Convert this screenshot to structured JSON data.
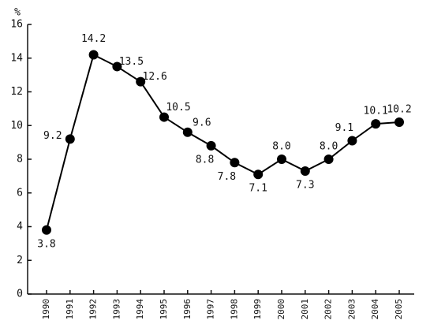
{
  "chart_data": {
    "type": "line",
    "y_label": "%",
    "categories": [
      "1990",
      "1991",
      "1992",
      "1993",
      "1994",
      "1995",
      "1996",
      "1997",
      "1998",
      "1999",
      "2000",
      "2001",
      "2002",
      "2003",
      "2004",
      "2005"
    ],
    "values": [
      3.8,
      9.2,
      14.2,
      13.5,
      12.6,
      10.5,
      9.6,
      8.8,
      7.8,
      7.1,
      8.0,
      7.3,
      8.0,
      9.1,
      10.1,
      10.2
    ],
    "value_labels": [
      "3.8",
      "9.2",
      "14.2",
      "13.5",
      "12.6",
      "10.5",
      "9.6",
      "8.8",
      "7.8",
      "7.1",
      "8.0",
      "7.3",
      "8.0",
      "9.1",
      "10.1",
      "10.2"
    ],
    "color": "#000000",
    "ylim": [
      0,
      16
    ],
    "yticks": [
      0,
      2,
      4,
      6,
      8,
      10,
      12,
      14,
      16
    ],
    "grid": false
  }
}
